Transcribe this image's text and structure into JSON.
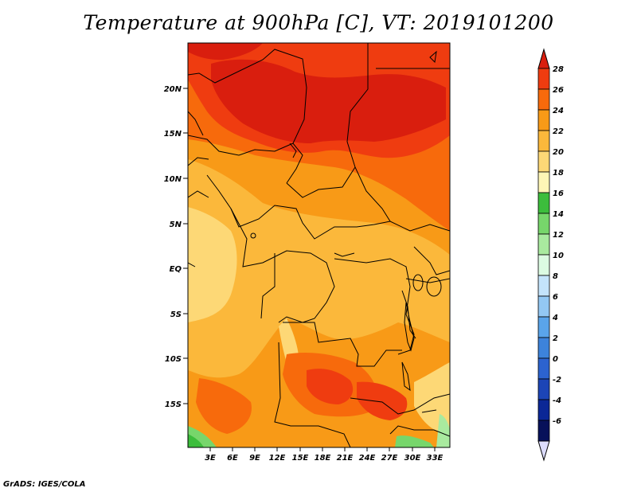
{
  "title": "Temperature at 900hPa [C], VT: 2019101200",
  "footer": "GrADS: IGES/COLA",
  "map": {
    "lat_labels": [
      "20N",
      "15N",
      "10N",
      "5N",
      "EQ",
      "5S",
      "10S",
      "15S"
    ],
    "lon_labels": [
      "3E",
      "6E",
      "9E",
      "12E",
      "15E",
      "18E",
      "21E",
      "24E",
      "27E",
      "30E",
      "33E"
    ]
  },
  "colorbar": {
    "labels": [
      "28",
      "26",
      "24",
      "22",
      "20",
      "18",
      "16",
      "14",
      "12",
      "10",
      "8",
      "6",
      "4",
      "2",
      "0",
      "-2",
      "-4",
      "-6"
    ],
    "colors": [
      "#d91e0e",
      "#ef3c10",
      "#f76a0c",
      "#f89a17",
      "#fbb83b",
      "#fdd876",
      "#fef6b6",
      "#3cbd3c",
      "#77d66b",
      "#a9ea9f",
      "#dcfbe2",
      "#c4e4fb",
      "#93c8f3",
      "#5aa4ea",
      "#3d83db",
      "#2c63cf",
      "#1c45b6",
      "#0b2796",
      "#07115a",
      "#dcdcfc"
    ]
  }
}
